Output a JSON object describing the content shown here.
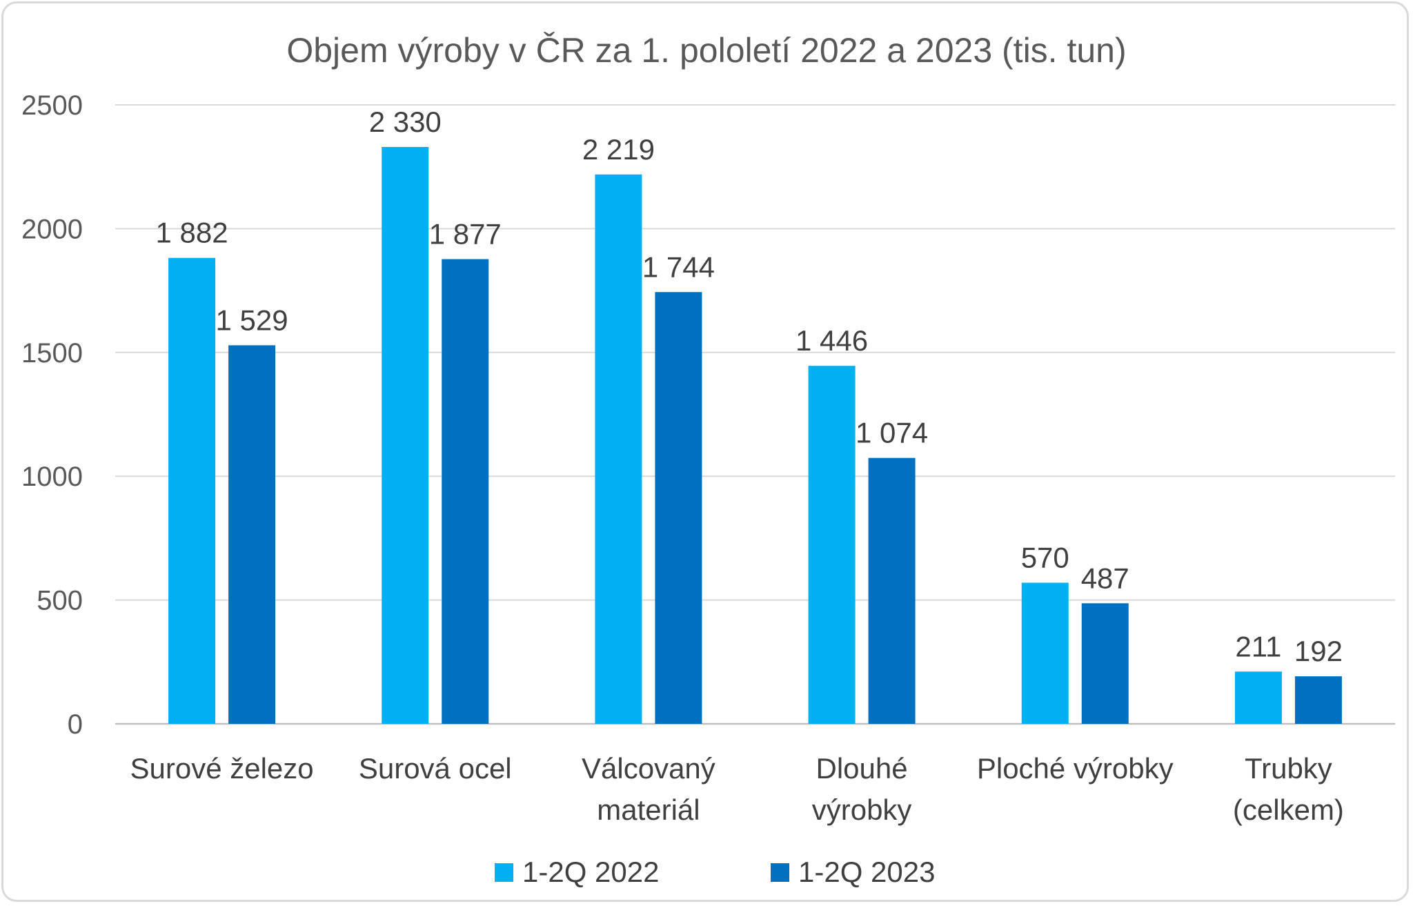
{
  "chart_data": {
    "type": "bar",
    "title": "Objem výroby v ČR za 1. pololetí 2022 a 2023 (tis. tun)",
    "categories": [
      [
        "Surové železo"
      ],
      [
        "Surová ocel"
      ],
      [
        "Válcovaný",
        "materiál"
      ],
      [
        "Dlouhé",
        "výrobky"
      ],
      [
        "Ploché výrobky"
      ],
      [
        "Trubky",
        "(celkem)"
      ]
    ],
    "series": [
      {
        "name": "1-2Q 2022",
        "color": "#00b0f0",
        "values": [
          1882,
          2330,
          2219,
          1446,
          570,
          211
        ],
        "labels": [
          "1 882",
          "2 330",
          "2 219",
          "1 446",
          "570",
          "211"
        ]
      },
      {
        "name": "1-2Q 2023",
        "color": "#0070c0",
        "values": [
          1529,
          1877,
          1744,
          1074,
          487,
          192
        ],
        "labels": [
          "1 529",
          "1 877",
          "1 744",
          "1 074",
          "487",
          "192"
        ]
      }
    ],
    "ylim": [
      0,
      2500
    ],
    "yticks": [
      0,
      500,
      1000,
      1500,
      2000,
      2500
    ],
    "grid": true,
    "legend_position": "bottom"
  }
}
